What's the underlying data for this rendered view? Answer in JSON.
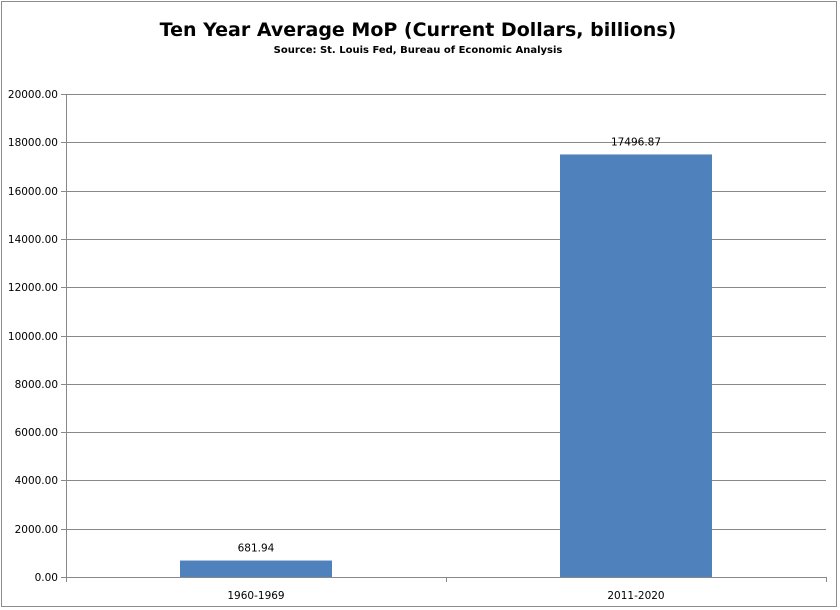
{
  "chart_data": {
    "type": "bar",
    "title": "Ten Year Average MoP (Current Dollars, billions)",
    "subtitle": "Source: St. Louis Fed, Bureau of Economic Analysis",
    "xlabel": "",
    "ylabel": "",
    "categories": [
      "1960-1969",
      "2011-2020"
    ],
    "values": [
      681.94,
      17496.87
    ],
    "data_labels": [
      "681.94",
      "17496.87"
    ],
    "ylim": [
      0,
      20000
    ],
    "yticks": [
      "0.00",
      "2000.00",
      "4000.00",
      "6000.00",
      "8000.00",
      "10000.00",
      "12000.00",
      "14000.00",
      "16000.00",
      "18000.00",
      "20000.00"
    ],
    "grid": true,
    "legend": "none",
    "bar_color": "#4f81bd",
    "grid_color": "#888888"
  }
}
